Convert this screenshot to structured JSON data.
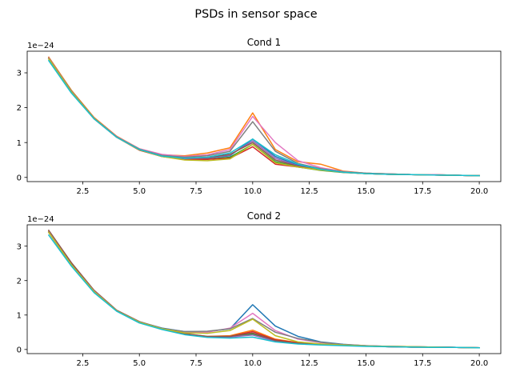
{
  "suptitle": "PSDs in sensor space",
  "chart_data": [
    {
      "type": "line",
      "title": "Cond 1",
      "offset_label": "1e−24",
      "xlabel": "",
      "ylabel": "",
      "xlim": [
        0.05,
        20.95
      ],
      "ylim": [
        -0.12,
        3.62
      ],
      "x_ticks": [
        2.5,
        5.0,
        7.5,
        10.0,
        12.5,
        15.0,
        17.5,
        20.0
      ],
      "x_tick_labels": [
        "2.5",
        "5.0",
        "7.5",
        "10.0",
        "12.5",
        "15.0",
        "17.5",
        "20.0"
      ],
      "y_ticks": [
        0,
        1,
        2,
        3
      ],
      "y_tick_labels": [
        "0",
        "1",
        "2",
        "3"
      ],
      "grid": false,
      "legend": false,
      "x": [
        1,
        2,
        3,
        4,
        5,
        6,
        7,
        8,
        9,
        10,
        11,
        12,
        13,
        14,
        15,
        16,
        17,
        18,
        19,
        20
      ],
      "series": [
        {
          "color": "#1f77b4",
          "values": [
            3.4,
            2.45,
            1.7,
            1.17,
            0.82,
            0.62,
            0.55,
            0.55,
            0.62,
            1.1,
            0.6,
            0.35,
            0.22,
            0.16,
            0.12,
            0.1,
            0.08,
            0.08,
            0.06,
            0.05
          ]
        },
        {
          "color": "#ff7f0e",
          "values": [
            3.45,
            2.5,
            1.72,
            1.18,
            0.82,
            0.65,
            0.62,
            0.7,
            0.85,
            1.85,
            0.8,
            0.45,
            0.38,
            0.18,
            0.12,
            0.1,
            0.08,
            0.08,
            0.06,
            0.05
          ]
        },
        {
          "color": "#2ca02c",
          "values": [
            3.42,
            2.48,
            1.7,
            1.16,
            0.8,
            0.6,
            0.52,
            0.52,
            0.58,
            0.95,
            0.45,
            0.3,
            0.2,
            0.14,
            0.11,
            0.09,
            0.08,
            0.07,
            0.06,
            0.05
          ]
        },
        {
          "color": "#d62728",
          "values": [
            3.4,
            2.45,
            1.68,
            1.15,
            0.78,
            0.6,
            0.52,
            0.52,
            0.55,
            0.88,
            0.38,
            0.3,
            0.22,
            0.15,
            0.11,
            0.09,
            0.08,
            0.07,
            0.06,
            0.05
          ]
        },
        {
          "color": "#9467bd",
          "values": [
            3.41,
            2.46,
            1.69,
            1.16,
            0.8,
            0.61,
            0.54,
            0.56,
            0.64,
            1.05,
            0.55,
            0.33,
            0.22,
            0.15,
            0.11,
            0.09,
            0.08,
            0.07,
            0.06,
            0.05
          ]
        },
        {
          "color": "#8c564b",
          "values": [
            3.43,
            2.47,
            1.7,
            1.17,
            0.81,
            0.61,
            0.55,
            0.57,
            0.66,
            1.0,
            0.5,
            0.32,
            0.21,
            0.15,
            0.11,
            0.09,
            0.08,
            0.07,
            0.06,
            0.05
          ]
        },
        {
          "color": "#e377c2",
          "values": [
            3.42,
            2.47,
            1.7,
            1.17,
            0.82,
            0.66,
            0.6,
            0.65,
            0.8,
            1.75,
            1.0,
            0.48,
            0.28,
            0.17,
            0.12,
            0.1,
            0.08,
            0.08,
            0.06,
            0.05
          ]
        },
        {
          "color": "#7f7f7f",
          "values": [
            3.41,
            2.46,
            1.7,
            1.16,
            0.81,
            0.63,
            0.58,
            0.62,
            0.75,
            1.6,
            0.75,
            0.4,
            0.25,
            0.16,
            0.12,
            0.1,
            0.08,
            0.07,
            0.06,
            0.05
          ]
        },
        {
          "color": "#bcbd22",
          "values": [
            3.4,
            2.45,
            1.69,
            1.15,
            0.79,
            0.6,
            0.5,
            0.48,
            0.53,
            0.95,
            0.42,
            0.3,
            0.21,
            0.15,
            0.11,
            0.09,
            0.08,
            0.07,
            0.06,
            0.05
          ]
        },
        {
          "color": "#17becf",
          "values": [
            3.35,
            2.42,
            1.68,
            1.15,
            0.8,
            0.61,
            0.55,
            0.58,
            0.7,
            1.1,
            0.65,
            0.38,
            0.23,
            0.15,
            0.11,
            0.09,
            0.08,
            0.07,
            0.06,
            0.05
          ]
        }
      ]
    },
    {
      "type": "line",
      "title": "Cond 2",
      "offset_label": "1e−24",
      "xlabel": "",
      "ylabel": "",
      "xlim": [
        0.05,
        20.95
      ],
      "ylim": [
        -0.12,
        3.62
      ],
      "x_ticks": [
        2.5,
        5.0,
        7.5,
        10.0,
        12.5,
        15.0,
        17.5,
        20.0
      ],
      "x_tick_labels": [
        "2.5",
        "5.0",
        "7.5",
        "10.0",
        "12.5",
        "15.0",
        "17.5",
        "20.0"
      ],
      "y_ticks": [
        0,
        1,
        2,
        3
      ],
      "y_tick_labels": [
        "0",
        "1",
        "2",
        "3"
      ],
      "grid": false,
      "legend": false,
      "x": [
        1,
        2,
        3,
        4,
        5,
        6,
        7,
        8,
        9,
        10,
        11,
        12,
        13,
        14,
        15,
        16,
        17,
        18,
        19,
        20
      ],
      "series": [
        {
          "color": "#1f77b4",
          "values": [
            3.4,
            2.45,
            1.68,
            1.12,
            0.8,
            0.62,
            0.52,
            0.52,
            0.6,
            1.3,
            0.68,
            0.38,
            0.22,
            0.15,
            0.11,
            0.09,
            0.08,
            0.07,
            0.06,
            0.05
          ]
        },
        {
          "color": "#ff7f0e",
          "values": [
            3.44,
            2.48,
            1.7,
            1.13,
            0.8,
            0.6,
            0.45,
            0.38,
            0.4,
            0.56,
            0.3,
            0.2,
            0.16,
            0.13,
            0.1,
            0.09,
            0.08,
            0.07,
            0.06,
            0.05
          ]
        },
        {
          "color": "#2ca02c",
          "values": [
            3.42,
            2.47,
            1.69,
            1.12,
            0.79,
            0.59,
            0.44,
            0.36,
            0.36,
            0.45,
            0.25,
            0.18,
            0.15,
            0.12,
            0.1,
            0.08,
            0.07,
            0.07,
            0.06,
            0.05
          ]
        },
        {
          "color": "#d62728",
          "values": [
            3.41,
            2.46,
            1.69,
            1.12,
            0.79,
            0.59,
            0.44,
            0.37,
            0.38,
            0.52,
            0.28,
            0.19,
            0.15,
            0.12,
            0.1,
            0.08,
            0.07,
            0.07,
            0.06,
            0.05
          ]
        },
        {
          "color": "#9467bd",
          "values": [
            3.4,
            2.45,
            1.68,
            1.12,
            0.79,
            0.59,
            0.45,
            0.37,
            0.36,
            0.42,
            0.24,
            0.17,
            0.14,
            0.12,
            0.1,
            0.08,
            0.07,
            0.07,
            0.06,
            0.05
          ]
        },
        {
          "color": "#8c564b",
          "values": [
            3.46,
            2.52,
            1.72,
            1.14,
            0.81,
            0.61,
            0.46,
            0.38,
            0.38,
            0.48,
            0.26,
            0.18,
            0.15,
            0.12,
            0.1,
            0.08,
            0.07,
            0.07,
            0.06,
            0.05
          ]
        },
        {
          "color": "#e377c2",
          "values": [
            3.41,
            2.46,
            1.69,
            1.12,
            0.8,
            0.6,
            0.5,
            0.5,
            0.62,
            1.05,
            0.55,
            0.3,
            0.2,
            0.14,
            0.11,
            0.09,
            0.08,
            0.07,
            0.06,
            0.05
          ]
        },
        {
          "color": "#7f7f7f",
          "values": [
            3.4,
            2.45,
            1.68,
            1.12,
            0.8,
            0.61,
            0.52,
            0.53,
            0.6,
            0.9,
            0.5,
            0.32,
            0.21,
            0.14,
            0.11,
            0.09,
            0.08,
            0.07,
            0.06,
            0.05
          ]
        },
        {
          "color": "#bcbd22",
          "values": [
            3.4,
            2.46,
            1.68,
            1.12,
            0.79,
            0.6,
            0.48,
            0.47,
            0.55,
            0.88,
            0.4,
            0.22,
            0.16,
            0.13,
            0.1,
            0.09,
            0.08,
            0.07,
            0.06,
            0.05
          ]
        },
        {
          "color": "#17becf",
          "values": [
            3.32,
            2.42,
            1.65,
            1.11,
            0.77,
            0.58,
            0.43,
            0.35,
            0.33,
            0.36,
            0.22,
            0.16,
            0.13,
            0.11,
            0.09,
            0.08,
            0.07,
            0.06,
            0.06,
            0.05
          ]
        }
      ]
    }
  ]
}
